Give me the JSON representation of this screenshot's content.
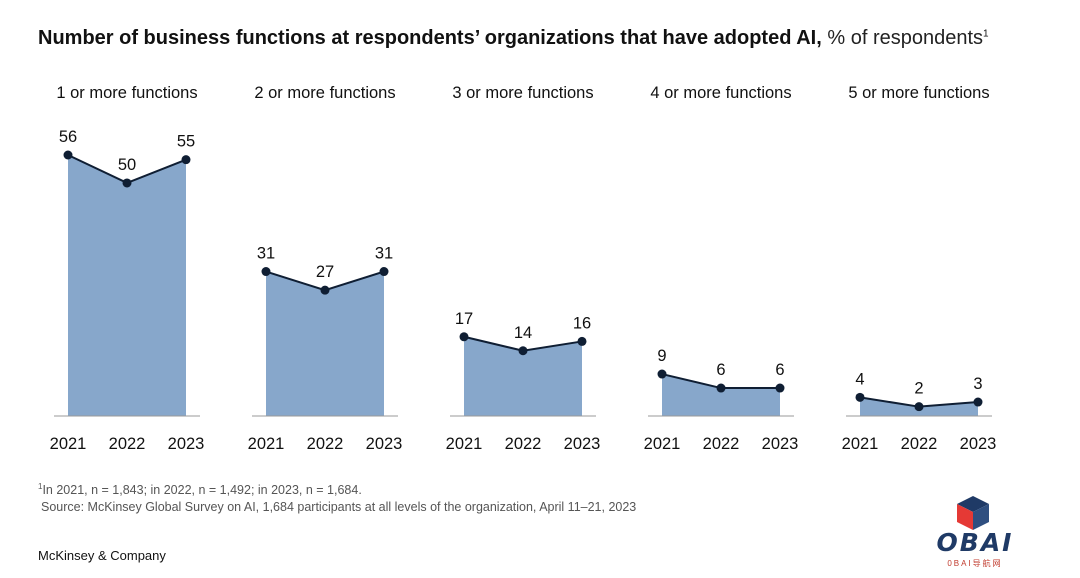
{
  "title": {
    "main": "Number of business functions at respondents’ organizations that have adopted AI,",
    "sub": "% of respondents",
    "sup": "1"
  },
  "chart_data": {
    "type": "area",
    "categories": [
      "2021",
      "2022",
      "2023"
    ],
    "ylim": [
      0,
      56
    ],
    "series": [
      {
        "name": "1 or more functions",
        "values": [
          56,
          50,
          55
        ]
      },
      {
        "name": "2 or more functions",
        "values": [
          31,
          27,
          31
        ]
      },
      {
        "name": "3 or more functions",
        "values": [
          17,
          14,
          16
        ]
      },
      {
        "name": "4 or more functions",
        "values": [
          9,
          6,
          6
        ]
      },
      {
        "name": "5 or more functions",
        "values": [
          4,
          2,
          3
        ]
      }
    ],
    "colors": {
      "fill": "#87a7cb",
      "line": "#0f1e33",
      "axis": "#999999"
    }
  },
  "footnotes": {
    "sup": "1",
    "line1": "In 2021, n = 1,843; in 2022, n = 1,492; in 2023, n = 1,684.",
    "line2": "Source: McKinsey Global Survey on AI, 1,684 participants at all levels of the organization, April 11–21, 2023"
  },
  "brand": "McKinsey & Company",
  "watermark": {
    "text": "OBAI",
    "sub": "0BAI导航网"
  }
}
